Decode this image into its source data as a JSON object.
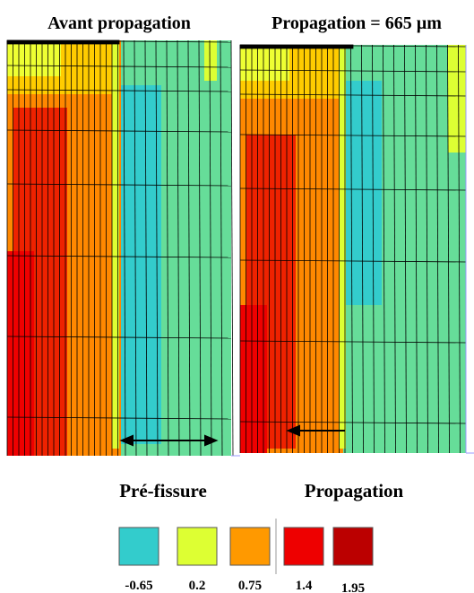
{
  "panels": [
    {
      "title": "Avant propagation",
      "caption": "Pré-fissure"
    },
    {
      "title": "Propagation = 665 µm",
      "caption": "Propagation"
    }
  ],
  "legend": [
    {
      "color": "#33cccc",
      "label": "-0.65"
    },
    {
      "color": "#ddff33",
      "label": "0.2"
    },
    {
      "color": "#ff9900",
      "label": "0.75"
    },
    {
      "color": "#ee0000",
      "label": "1.4"
    },
    {
      "color": "#bb0000",
      "label": "1.95"
    }
  ]
}
